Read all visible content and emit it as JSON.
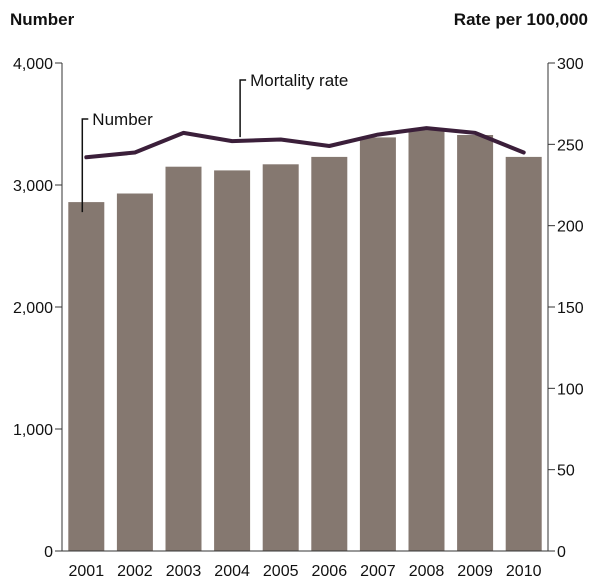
{
  "chart_data": {
    "type": "bar",
    "categories": [
      "2001",
      "2002",
      "2003",
      "2004",
      "2005",
      "2006",
      "2007",
      "2008",
      "2009",
      "2010"
    ],
    "series": [
      {
        "name": "Number",
        "type": "bar",
        "axis": "left",
        "color": "#857870",
        "values": [
          2860,
          2930,
          3150,
          3120,
          3170,
          3230,
          3390,
          3450,
          3410,
          3230
        ]
      },
      {
        "name": "Mortality rate",
        "type": "line",
        "axis": "right",
        "color": "#3b1f3a",
        "values": [
          242,
          245,
          257,
          252,
          253,
          249,
          256,
          260,
          257,
          245
        ]
      }
    ],
    "left_axis": {
      "title": "Number",
      "ylim": [
        0,
        4000
      ],
      "ticks": [
        0,
        1000,
        2000,
        3000,
        4000
      ],
      "tick_labels": [
        "0",
        "1,000",
        "2,000",
        "3,000",
        "4,000"
      ]
    },
    "right_axis": {
      "title": "Rate per 100,000",
      "ylim": [
        0,
        300
      ],
      "ticks": [
        0,
        50,
        100,
        150,
        200,
        250,
        300
      ],
      "tick_labels": [
        "0",
        "50",
        "100",
        "150",
        "200",
        "250",
        "300"
      ]
    },
    "grid": false,
    "legend": "inline annotations",
    "annotations": [
      {
        "text": "Number",
        "series": "Number",
        "category": "2001"
      },
      {
        "text": "Mortality rate",
        "series": "Mortality rate",
        "category": "2004"
      }
    ]
  }
}
